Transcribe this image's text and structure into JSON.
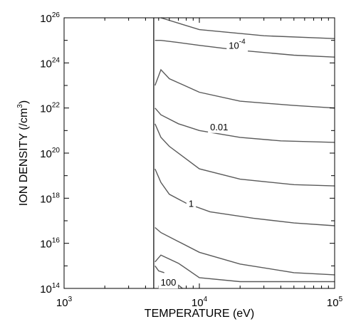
{
  "chart_data": {
    "type": "line",
    "title": "",
    "xlabel": "TEMPERATURE (eV)",
    "ylabel_main": "ION DENSITY (/cm",
    "ylabel_exp": "3",
    "ylabel_close": ")",
    "x_scale": "log",
    "y_scale": "log",
    "xlim": [
      1000,
      100000
    ],
    "ylim": [
      100000000000000.0,
      1e+26
    ],
    "x_ticks": [
      {
        "base": "10",
        "exp": "3",
        "value": 1000
      },
      {
        "base": "10",
        "exp": "4",
        "value": 10000
      },
      {
        "base": "10",
        "exp": "5",
        "value": 100000
      }
    ],
    "y_ticks": [
      {
        "base": "10",
        "exp": "14",
        "value": 100000000000000.0
      },
      {
        "base": "10",
        "exp": "16",
        "value": 1e+16
      },
      {
        "base": "10",
        "exp": "18",
        "value": 1e+18
      },
      {
        "base": "10",
        "exp": "20",
        "value": 1e+20
      },
      {
        "base": "10",
        "exp": "22",
        "value": 1e+22
      },
      {
        "base": "10",
        "exp": "24",
        "value": 1e+24
      },
      {
        "base": "10",
        "exp": "26",
        "value": 1e+26
      }
    ],
    "vertical_line_x": 4600,
    "grid": false,
    "series": [
      {
        "points": [
          [
            5200,
            1e+26
          ],
          [
            10000,
            3e+25
          ],
          [
            30000,
            1.6e+25
          ],
          [
            100000,
            1.2e+25
          ]
        ]
      },
      {
        "label": "10",
        "label_exp": "-4",
        "label_at": [
          19000,
          6e+24
        ],
        "points": [
          [
            4700,
            1e+25
          ],
          [
            5200,
            1e+25
          ],
          [
            7000,
            8e+24
          ],
          [
            10000,
            6e+24
          ],
          [
            20000,
            3.6e+24
          ],
          [
            50000,
            2.2e+24
          ],
          [
            100000,
            1.8e+24
          ]
        ]
      },
      {
        "points": [
          [
            4700,
            1e+23
          ],
          [
            5200,
            5e+23
          ],
          [
            6000,
            2e+23
          ],
          [
            10000,
            5e+22
          ],
          [
            20000,
            2e+22
          ],
          [
            50000,
            1.3e+22
          ],
          [
            100000,
            1e+22
          ]
        ]
      },
      {
        "label": "0.01",
        "label_at": [
          14000,
          1.5e+21
        ],
        "points": [
          [
            4700,
            1e+22
          ],
          [
            5200,
            5e+21
          ],
          [
            7000,
            2e+21
          ],
          [
            10000,
            1e+21
          ],
          [
            20000,
            5e+20
          ],
          [
            40000,
            3.5e+20
          ],
          [
            100000,
            3e+20
          ]
        ]
      },
      {
        "points": [
          [
            4700,
            2e+21
          ],
          [
            5200,
            5e+20
          ],
          [
            6000,
            2e+20
          ],
          [
            10000,
            2e+19
          ],
          [
            20000,
            7e+18
          ],
          [
            50000,
            4e+18
          ],
          [
            100000,
            3.5e+18
          ]
        ]
      },
      {
        "label": "1",
        "label_at": [
          8700,
          6e+17
        ],
        "points": [
          [
            4700,
            2e+19
          ],
          [
            5200,
            5e+18
          ],
          [
            6000,
            1.5e+18
          ],
          [
            8000,
            6e+17
          ],
          [
            12000,
            2.5e+17
          ],
          [
            25000,
            1.3e+17
          ],
          [
            50000,
            8e+16
          ],
          [
            100000,
            6e+16
          ]
        ]
      },
      {
        "points": [
          [
            4700,
            5e+16
          ],
          [
            5200,
            3e+16
          ],
          [
            7000,
            1.2e+16
          ],
          [
            10000,
            4000000000000000.0
          ],
          [
            20000,
            1200000000000000.0
          ],
          [
            50000,
            500000000000000.0
          ],
          [
            100000,
            400000000000000.0
          ]
        ]
      },
      {
        "points": [
          [
            4700,
            1500000000000000.0
          ],
          [
            5200,
            3000000000000000.0
          ],
          [
            7000,
            1300000000000000.0
          ],
          [
            10000,
            300000000000000.0
          ],
          [
            20000,
            200000000000000.0
          ],
          [
            100000,
            200000000000000.0
          ]
        ]
      },
      {
        "label": "100",
        "label_at": [
          5900,
          190000000000000.0
        ],
        "points": [
          [
            4700,
            1000000000000000.0
          ],
          [
            5000,
            600000000000000.0
          ],
          [
            5500,
            500000000000000.0
          ]
        ]
      },
      {
        "points": [
          [
            6800,
            160000000000000.0
          ],
          [
            7500,
            100000000000000.0
          ]
        ]
      }
    ]
  }
}
